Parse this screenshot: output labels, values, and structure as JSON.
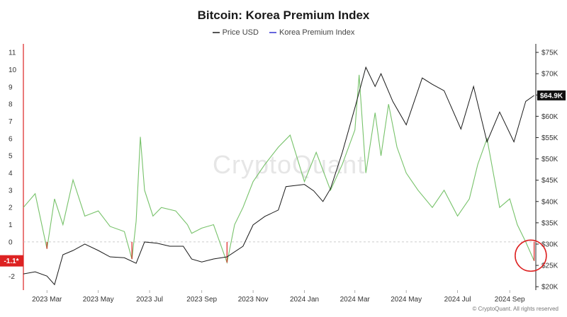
{
  "title": "Bitcoin: Korea Premium Index",
  "legend": [
    {
      "label": "Price USD",
      "color": "#555555"
    },
    {
      "label": "Korea Premium Index",
      "color": "#6666dd"
    }
  ],
  "watermark": "CryptoQuant",
  "copyright": "© CryptoQuant. All rights reserved",
  "colors": {
    "price": "#1a1a1a",
    "premium_positive": "#77c26a",
    "premium_negative": "#dd2222",
    "highlight_circle": "#dd2222"
  },
  "chart_data": {
    "type": "line",
    "title": "Bitcoin: Korea Premium Index",
    "x_tick_labels": [
      "2023 Mar",
      "2023 May",
      "2023 Jul",
      "2023 Sep",
      "2023 Nov",
      "2024 Jan",
      "2024 Mar",
      "2024 May",
      "2024 Jul",
      "2024 Sep"
    ],
    "left_axis": {
      "ylim": [
        -2.8,
        11.5
      ],
      "ticks": [
        11,
        10,
        9,
        8,
        7,
        6,
        5,
        4,
        3,
        2,
        1,
        0,
        -1,
        -2
      ]
    },
    "right_axis": {
      "ylim": [
        19200,
        77000
      ],
      "ticks": [
        "$75K",
        "$70K",
        "$65K",
        "$60K",
        "$55K",
        "$50K",
        "$45K",
        "$40K",
        "$35K",
        "$30K",
        "$25K",
        "$20K"
      ],
      "tick_values": [
        75000,
        70000,
        65000,
        60000,
        55000,
        50000,
        45000,
        40000,
        35000,
        30000,
        25000,
        20000
      ]
    },
    "right_badge": "$64.9K",
    "right_badge_value": 64900,
    "left_badge": "-1.1*",
    "left_badge_value": -1.1,
    "series": [
      {
        "name": "Price USD",
        "axis": "right",
        "x": [
          "2023-02-01",
          "2023-02-15",
          "2023-03-01",
          "2023-03-10",
          "2023-03-20",
          "2023-04-01",
          "2023-04-15",
          "2023-05-01",
          "2023-05-15",
          "2023-06-01",
          "2023-06-15",
          "2023-06-25",
          "2023-07-10",
          "2023-07-25",
          "2023-08-10",
          "2023-08-20",
          "2023-09-01",
          "2023-09-15",
          "2023-10-01",
          "2023-10-20",
          "2023-11-01",
          "2023-11-15",
          "2023-12-01",
          "2023-12-10",
          "2024-01-01",
          "2024-01-12",
          "2024-01-23",
          "2024-02-01",
          "2024-02-15",
          "2024-03-01",
          "2024-03-14",
          "2024-03-25",
          "2024-04-01",
          "2024-04-15",
          "2024-05-01",
          "2024-05-20",
          "2024-06-01",
          "2024-06-15",
          "2024-07-05",
          "2024-07-20",
          "2024-08-05",
          "2024-08-20",
          "2024-09-06",
          "2024-09-20",
          "2024-09-30"
        ],
        "values": [
          23000,
          23500,
          22500,
          20500,
          27500,
          28500,
          30000,
          28500,
          27000,
          26800,
          25500,
          30500,
          30200,
          29500,
          29500,
          26500,
          25800,
          26500,
          27000,
          29500,
          34500,
          36500,
          38000,
          43500,
          44000,
          42500,
          40000,
          43000,
          51500,
          62000,
          71500,
          67000,
          70000,
          63500,
          58000,
          69000,
          67500,
          66000,
          57000,
          67000,
          54000,
          61000,
          54000,
          63500,
          64900
        ]
      },
      {
        "name": "Korea Premium Index",
        "axis": "left",
        "x": [
          "2023-02-01",
          "2023-02-15",
          "2023-03-01",
          "2023-03-10",
          "2023-03-20",
          "2023-04-01",
          "2023-04-15",
          "2023-05-01",
          "2023-05-15",
          "2023-06-01",
          "2023-06-10",
          "2023-06-15",
          "2023-06-20",
          "2023-06-25",
          "2023-07-05",
          "2023-07-15",
          "2023-08-01",
          "2023-08-15",
          "2023-08-20",
          "2023-09-01",
          "2023-09-15",
          "2023-10-01",
          "2023-10-10",
          "2023-10-20",
          "2023-11-01",
          "2023-11-15",
          "2023-12-01",
          "2023-12-15",
          "2024-01-01",
          "2024-01-15",
          "2024-02-01",
          "2024-02-15",
          "2024-03-01",
          "2024-03-06",
          "2024-03-14",
          "2024-03-25",
          "2024-04-01",
          "2024-04-10",
          "2024-04-20",
          "2024-05-01",
          "2024-05-15",
          "2024-06-01",
          "2024-06-15",
          "2024-07-01",
          "2024-07-15",
          "2024-07-25",
          "2024-08-05",
          "2024-08-20",
          "2024-09-01",
          "2024-09-10",
          "2024-09-20",
          "2024-09-30"
        ],
        "values": [
          2.0,
          2.8,
          -0.4,
          2.5,
          1.0,
          3.6,
          1.5,
          1.8,
          0.9,
          0.6,
          -1.0,
          1.2,
          6.1,
          3.0,
          1.5,
          2.0,
          1.8,
          1.0,
          0.5,
          0.8,
          1.0,
          -1.2,
          1.0,
          2.0,
          3.5,
          4.5,
          5.5,
          6.2,
          3.5,
          5.2,
          3.0,
          4.5,
          6.5,
          9.7,
          4.0,
          7.5,
          5.0,
          8.0,
          5.5,
          4.0,
          3.0,
          2.0,
          3.0,
          1.5,
          2.5,
          4.5,
          6.0,
          2.0,
          2.5,
          1.0,
          0.0,
          -1.1
        ]
      }
    ]
  }
}
